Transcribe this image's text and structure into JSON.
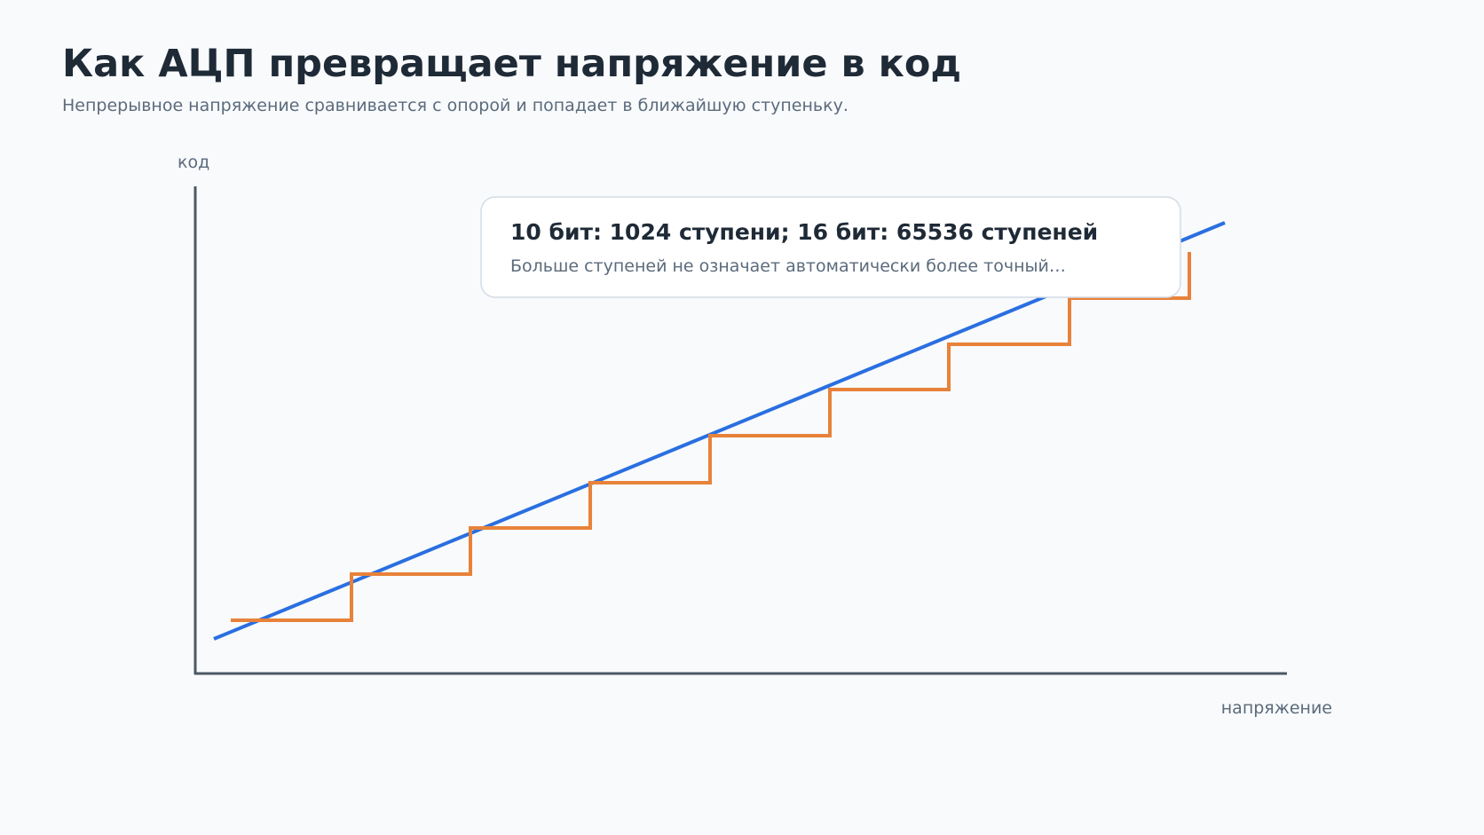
{
  "header": {
    "title": "Как АЦП превращает напряжение в код",
    "subtitle": "Непрерывное напряжение сравнивается с опорой и попадает в ближайшую ступеньку."
  },
  "axes": {
    "y_label": "код",
    "x_label": "напряжение"
  },
  "callout": {
    "title": "10 бит: 1024 ступени; 16 бит: 65536 ступеней",
    "text": "Больше ступеней не означает автоматически более точный…"
  }
}
